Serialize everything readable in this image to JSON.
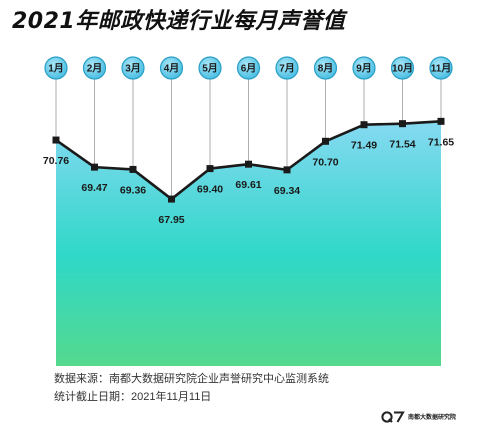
{
  "chart_data": {
    "type": "area",
    "title": "2021年邮政快递行业每月声誉值",
    "categories": [
      "1月",
      "2月",
      "3月",
      "4月",
      "5月",
      "6月",
      "7月",
      "8月",
      "9月",
      "10月",
      "11月"
    ],
    "values": [
      70.76,
      69.47,
      69.36,
      67.95,
      69.4,
      69.61,
      69.34,
      70.7,
      71.49,
      71.54,
      71.65
    ],
    "value_labels": [
      "70.76",
      "69.47",
      "69.36",
      "67.95",
      "69.40",
      "69.61",
      "69.34",
      "70.70",
      "71.49",
      "71.54",
      "71.65"
    ],
    "ylim": [
      60,
      76
    ],
    "grid": false,
    "legend": "none",
    "colors": {
      "line": "#1a1a1a",
      "marker": "#1a1a1a",
      "badge": "#5cc8e8",
      "badge_border": "#2a9fc4",
      "fill_top": "#86d9f2",
      "fill_middle": "#2fd8c8",
      "fill_bottom": "#55d98e"
    }
  },
  "notes": {
    "source": "数据来源：南都大数据研究院企业声誉研究中心监测系统",
    "date": "统计截止日期：2021年11月11日"
  },
  "logo": {
    "mark": "Q7",
    "text": "南都大数据研究院"
  }
}
